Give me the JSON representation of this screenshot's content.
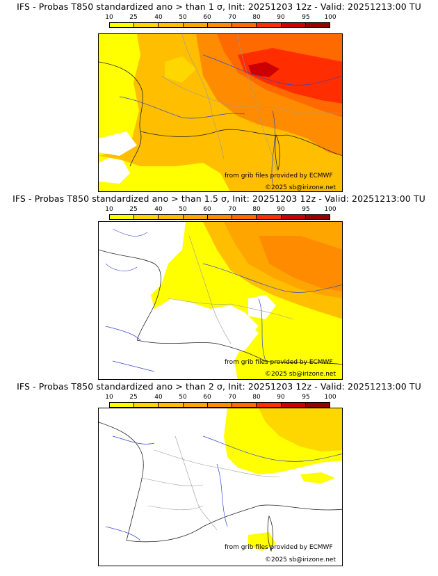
{
  "legend": {
    "ticks": [
      "10",
      "25",
      "40",
      "50",
      "60",
      "70",
      "80",
      "90",
      "95",
      "100"
    ],
    "colors": [
      "#ffff00",
      "#ffd700",
      "#ffbf00",
      "#ffa500",
      "#ff8c00",
      "#ff6a00",
      "#ff2d00",
      "#cc0000",
      "#990000",
      "#5a0000"
    ]
  },
  "panels": [
    {
      "title": "IFS - Probas T850  standardized ano > than 1 σ, Init: 20251203 12z - Valid: 20251213:00 TU",
      "credit": "from grib files provided by ECMWF",
      "copyright": "©2025 sb@irizone.net"
    },
    {
      "title": "IFS - Probas T850  standardized ano > than 1.5 σ, Init: 20251203 12z - Valid: 20251213:00 TU",
      "credit": "from grib files provided by ECMWF",
      "copyright": "©2025 sb@irizone.net"
    },
    {
      "title": "IFS - Probas T850  standardized ano > than 2 σ, Init: 20251203 12z - Valid: 20251213:00 TU",
      "credit": "from grib files provided by ECMWF",
      "copyright": "©2025 sb@irizone.net"
    }
  ]
}
